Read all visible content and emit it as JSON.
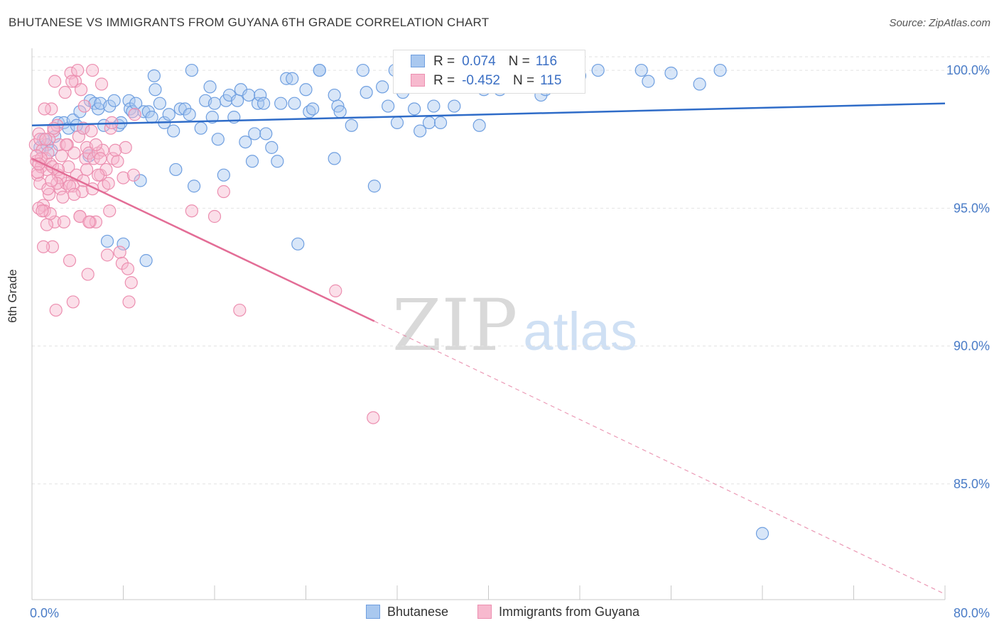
{
  "title": "BHUTANESE VS IMMIGRANTS FROM GUYANA 6TH GRADE CORRELATION CHART",
  "source": "Source: ZipAtlas.com",
  "watermark": {
    "zip": "ZIP",
    "atlas": "atlas"
  },
  "legend": {
    "r_label": "R =",
    "n_label": "N =",
    "rows": [
      {
        "r": "0.074",
        "n": "116"
      },
      {
        "r": "-0.452",
        "n": "115"
      }
    ]
  },
  "colors": {
    "blue_fill": "#a9c8ef",
    "blue_stroke": "#6f9fe0",
    "blue_line": "#2f6cc8",
    "pink_fill": "#f7b9ce",
    "pink_stroke": "#ec8fb0",
    "pink_line": "#e36d96",
    "tick_color": "#4a7cc7",
    "grid": "#e2e2e2"
  },
  "chart_data": {
    "type": "scatter",
    "title": "BHUTANESE VS IMMIGRANTS FROM GUYANA 6TH GRADE CORRELATION CHART",
    "xlabel": "",
    "ylabel": "6th Grade",
    "xlim": [
      0,
      80
    ],
    "ylim": [
      80.8,
      100.8
    ],
    "x_ticks": [
      "0.0%",
      "80.0%"
    ],
    "y_ticks": [
      {
        "value": 100,
        "label": "100.0%"
      },
      {
        "value": 95,
        "label": "95.0%"
      },
      {
        "value": 90,
        "label": "90.0%"
      },
      {
        "value": 85,
        "label": "85.0%"
      }
    ],
    "grid": true,
    "legend_position": "bottom",
    "series": [
      {
        "name": "Bhutanese",
        "trend": {
          "x": [
            0,
            80
          ],
          "y": [
            98.0,
            98.8
          ]
        },
        "points": [
          [
            0.7,
            97.2
          ],
          [
            1.0,
            97.5
          ],
          [
            1.3,
            97.3
          ],
          [
            1.7,
            97.1
          ],
          [
            2.0,
            97.6
          ],
          [
            2.3,
            98.1
          ],
          [
            2.8,
            98.1
          ],
          [
            3.2,
            97.9
          ],
          [
            3.6,
            98.2
          ],
          [
            4.2,
            98.5
          ],
          [
            4.5,
            97.9
          ],
          [
            5.0,
            96.9
          ],
          [
            5.1,
            98.9
          ],
          [
            5.5,
            98.8
          ],
          [
            5.8,
            98.6
          ],
          [
            6.0,
            98.8
          ],
          [
            6.3,
            98.0
          ],
          [
            6.6,
            93.8
          ],
          [
            6.8,
            98.7
          ],
          [
            7.2,
            98.9
          ],
          [
            7.6,
            98.0
          ],
          [
            7.8,
            98.1
          ],
          [
            8.0,
            93.7
          ],
          [
            8.5,
            98.9
          ],
          [
            8.6,
            98.6
          ],
          [
            8.8,
            98.5
          ],
          [
            9.1,
            98.8
          ],
          [
            9.5,
            96.0
          ],
          [
            9.8,
            98.5
          ],
          [
            10.0,
            93.1
          ],
          [
            10.2,
            98.5
          ],
          [
            10.5,
            98.3
          ],
          [
            10.7,
            99.8
          ],
          [
            10.8,
            99.3
          ],
          [
            11.2,
            98.8
          ],
          [
            11.6,
            98.1
          ],
          [
            12.0,
            98.4
          ],
          [
            12.4,
            97.8
          ],
          [
            12.6,
            96.4
          ],
          [
            13.0,
            98.6
          ],
          [
            13.4,
            98.6
          ],
          [
            13.8,
            98.4
          ],
          [
            14.0,
            100.0
          ],
          [
            14.2,
            95.8
          ],
          [
            14.8,
            97.9
          ],
          [
            15.2,
            98.9
          ],
          [
            15.6,
            99.4
          ],
          [
            15.8,
            98.3
          ],
          [
            16.0,
            98.8
          ],
          [
            16.3,
            97.5
          ],
          [
            16.8,
            96.2
          ],
          [
            17.0,
            98.9
          ],
          [
            17.3,
            99.1
          ],
          [
            17.7,
            98.3
          ],
          [
            18.0,
            98.9
          ],
          [
            18.3,
            99.3
          ],
          [
            18.7,
            97.4
          ],
          [
            19.0,
            99.1
          ],
          [
            19.3,
            96.7
          ],
          [
            19.5,
            97.7
          ],
          [
            19.8,
            98.8
          ],
          [
            20.0,
            99.1
          ],
          [
            20.3,
            98.8
          ],
          [
            20.5,
            97.7
          ],
          [
            21.0,
            97.2
          ],
          [
            21.5,
            96.7
          ],
          [
            21.8,
            98.8
          ],
          [
            22.3,
            99.7
          ],
          [
            22.8,
            99.7
          ],
          [
            23.0,
            98.8
          ],
          [
            23.3,
            93.7
          ],
          [
            24.0,
            99.3
          ],
          [
            24.3,
            98.5
          ],
          [
            24.6,
            98.6
          ],
          [
            25.2,
            100.0
          ],
          [
            25.2,
            100.0
          ],
          [
            26.5,
            99.1
          ],
          [
            26.8,
            98.7
          ],
          [
            27.0,
            98.5
          ],
          [
            26.5,
            96.8
          ],
          [
            28.0,
            98.0
          ],
          [
            29.0,
            100.0
          ],
          [
            29.3,
            99.2
          ],
          [
            30.0,
            95.8
          ],
          [
            30.7,
            99.4
          ],
          [
            31.2,
            98.7
          ],
          [
            31.8,
            100.0
          ],
          [
            32.0,
            98.1
          ],
          [
            32.5,
            99.2
          ],
          [
            33.5,
            98.6
          ],
          [
            34.0,
            97.8
          ],
          [
            34.8,
            98.1
          ],
          [
            35.2,
            98.7
          ],
          [
            35.8,
            98.1
          ],
          [
            36.3,
            99.8
          ],
          [
            37.0,
            98.7
          ],
          [
            38.2,
            99.5
          ],
          [
            39.2,
            98.0
          ],
          [
            39.6,
            99.3
          ],
          [
            42.3,
            99.8
          ],
          [
            43.0,
            99.6
          ],
          [
            44.0,
            100.0
          ],
          [
            44.6,
            99.1
          ],
          [
            45.0,
            99.3
          ],
          [
            46.0,
            99.7
          ],
          [
            47.0,
            100.0
          ],
          [
            48.0,
            99.8
          ],
          [
            49.6,
            100.0
          ],
          [
            53.4,
            100.0
          ],
          [
            60.3,
            100.0
          ],
          [
            64.0,
            83.2
          ],
          [
            56.0,
            99.9
          ],
          [
            58.5,
            99.5
          ],
          [
            54.0,
            99.6
          ],
          [
            41.0,
            99.3
          ],
          [
            3.9,
            98.0
          ]
        ]
      },
      {
        "name": "Immigrants from Guyana",
        "trend": {
          "x": [
            0,
            30
          ],
          "y": [
            96.8,
            90.9
          ]
        },
        "trend_dashed": {
          "x": [
            30,
            80
          ],
          "y": [
            90.9,
            81.0
          ]
        },
        "points": [
          [
            0.3,
            97.3
          ],
          [
            0.4,
            96.7
          ],
          [
            0.5,
            96.2
          ],
          [
            0.6,
            97.7
          ],
          [
            0.7,
            95.9
          ],
          [
            0.8,
            96.5
          ],
          [
            0.9,
            97.1
          ],
          [
            1.0,
            95.1
          ],
          [
            1.1,
            94.9
          ],
          [
            1.2,
            96.8
          ],
          [
            1.3,
            96.4
          ],
          [
            1.4,
            97.0
          ],
          [
            1.5,
            95.5
          ],
          [
            1.6,
            96.6
          ],
          [
            1.7,
            98.6
          ],
          [
            1.8,
            96.5
          ],
          [
            1.9,
            97.8
          ],
          [
            2.0,
            94.5
          ],
          [
            2.2,
            98.0
          ],
          [
            2.3,
            96.2
          ],
          [
            2.4,
            97.3
          ],
          [
            2.5,
            95.7
          ],
          [
            2.6,
            96.9
          ],
          [
            2.8,
            94.5
          ],
          [
            3.0,
            95.9
          ],
          [
            3.1,
            97.3
          ],
          [
            3.2,
            96.5
          ],
          [
            3.3,
            93.1
          ],
          [
            3.4,
            99.9
          ],
          [
            3.6,
            95.8
          ],
          [
            3.7,
            97.0
          ],
          [
            3.8,
            99.6
          ],
          [
            3.9,
            96.2
          ],
          [
            4.1,
            97.6
          ],
          [
            4.2,
            94.7
          ],
          [
            4.3,
            99.3
          ],
          [
            4.4,
            95.6
          ],
          [
            4.5,
            97.9
          ],
          [
            4.6,
            98.7
          ],
          [
            4.7,
            96.8
          ],
          [
            4.8,
            97.2
          ],
          [
            4.9,
            92.6
          ],
          [
            5.0,
            97.0
          ],
          [
            5.1,
            94.5
          ],
          [
            5.2,
            97.8
          ],
          [
            5.4,
            96.8
          ],
          [
            5.6,
            94.5
          ],
          [
            5.8,
            97.0
          ],
          [
            6.0,
            96.2
          ],
          [
            6.2,
            97.1
          ],
          [
            6.3,
            95.8
          ],
          [
            6.5,
            96.4
          ],
          [
            6.6,
            93.3
          ],
          [
            6.8,
            94.9
          ],
          [
            6.9,
            97.9
          ],
          [
            7.0,
            98.1
          ],
          [
            7.1,
            96.8
          ],
          [
            7.5,
            96.7
          ],
          [
            7.7,
            93.4
          ],
          [
            7.9,
            93.0
          ],
          [
            8.0,
            96.1
          ],
          [
            8.2,
            97.2
          ],
          [
            8.4,
            92.8
          ],
          [
            8.5,
            91.6
          ],
          [
            8.7,
            92.3
          ],
          [
            8.9,
            96.2
          ],
          [
            9.0,
            98.4
          ],
          [
            2.0,
            99.6
          ],
          [
            2.9,
            99.2
          ],
          [
            3.5,
            99.6
          ],
          [
            4.0,
            100.0
          ],
          [
            5.3,
            100.0
          ],
          [
            6.1,
            99.5
          ],
          [
            1.5,
            97.5
          ],
          [
            1.8,
            93.6
          ],
          [
            2.1,
            91.3
          ],
          [
            3.6,
            91.6
          ],
          [
            0.5,
            96.3
          ],
          [
            0.6,
            95.0
          ],
          [
            0.7,
            97.5
          ],
          [
            0.8,
            96.8
          ],
          [
            1.0,
            93.6
          ],
          [
            1.2,
            97.5
          ],
          [
            1.4,
            95.7
          ],
          [
            1.6,
            94.8
          ],
          [
            1.9,
            97.9
          ],
          [
            2.3,
            96.4
          ],
          [
            2.7,
            95.4
          ],
          [
            3.3,
            95.8
          ],
          [
            3.7,
            95.5
          ],
          [
            4.2,
            94.7
          ],
          [
            4.5,
            96.0
          ],
          [
            5.0,
            94.5
          ],
          [
            5.3,
            95.7
          ],
          [
            5.8,
            96.2
          ],
          [
            6.0,
            96.8
          ],
          [
            14.0,
            94.9
          ],
          [
            16.0,
            94.7
          ],
          [
            16.8,
            95.6
          ],
          [
            18.2,
            91.3
          ],
          [
            26.6,
            92.0
          ],
          [
            29.9,
            87.4
          ],
          [
            1.1,
            98.6
          ],
          [
            2.5,
            96.1
          ],
          [
            0.9,
            94.9
          ],
          [
            0.4,
            96.9
          ],
          [
            1.3,
            94.4
          ],
          [
            2.2,
            95.9
          ],
          [
            3.0,
            97.3
          ],
          [
            4.8,
            96.4
          ],
          [
            5.6,
            97.3
          ],
          [
            6.7,
            95.9
          ],
          [
            7.3,
            97.1
          ],
          [
            0.6,
            96.6
          ],
          [
            1.7,
            96.0
          ]
        ]
      }
    ]
  },
  "bottom_legend": [
    "Bhutanese",
    "Immigrants from Guyana"
  ]
}
